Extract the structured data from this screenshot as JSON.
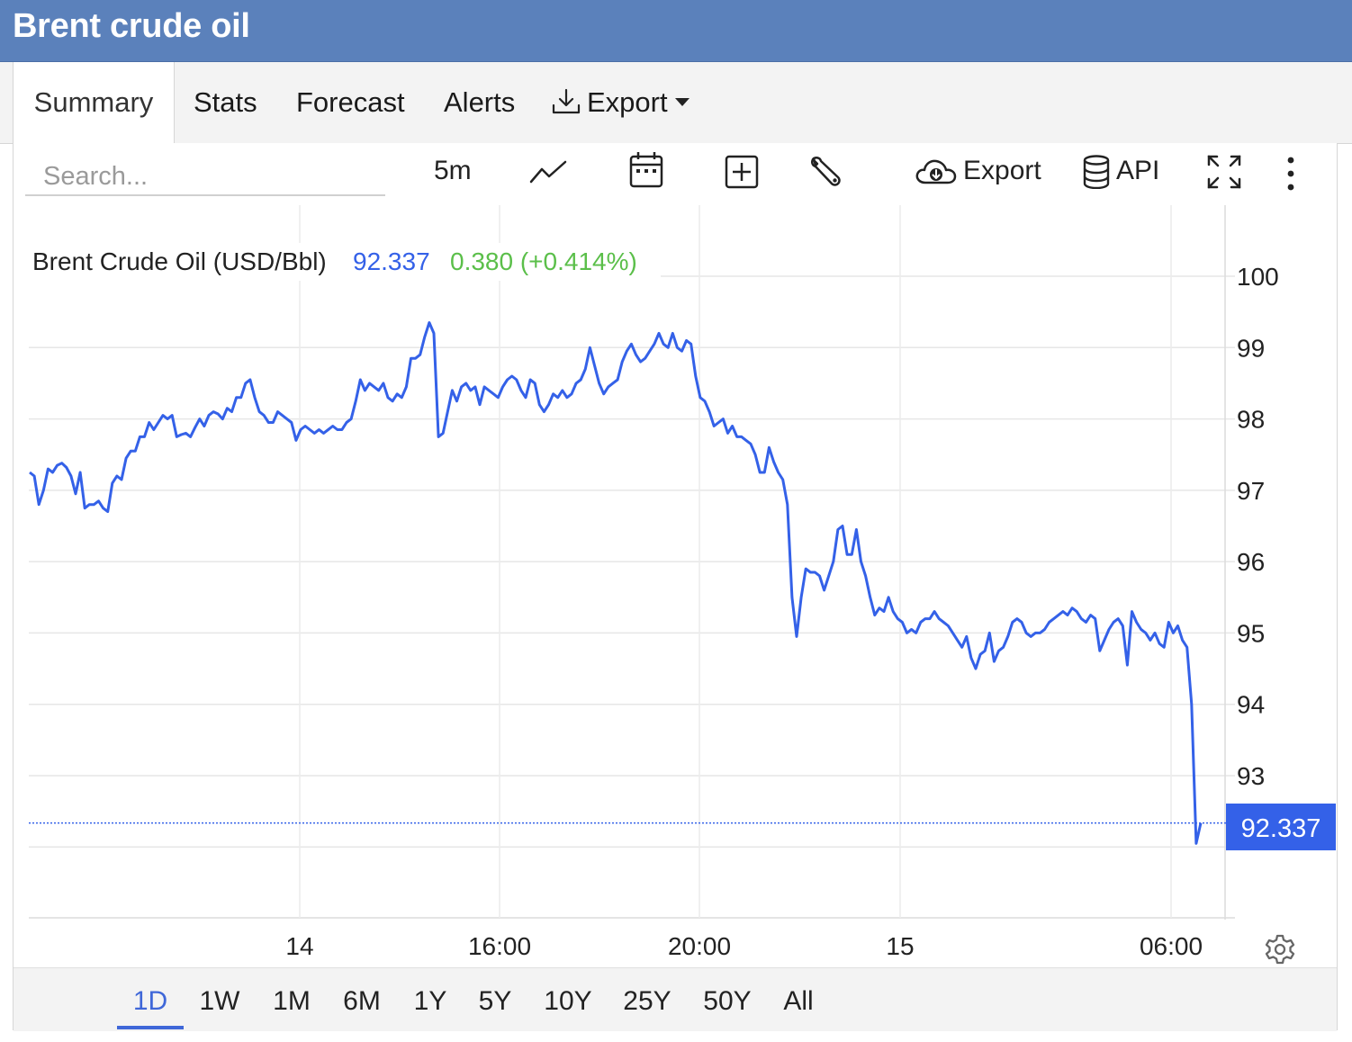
{
  "header": {
    "title": "Brent crude oil"
  },
  "tabs": [
    {
      "label": "Summary",
      "active": true
    },
    {
      "label": "Stats"
    },
    {
      "label": "Forecast"
    },
    {
      "label": "Alerts"
    },
    {
      "label": "Export",
      "icon": "download-icon",
      "dropdown": true
    }
  ],
  "toolbar": {
    "search_placeholder": "Search...",
    "interval": "5m",
    "export_label": "Export",
    "api_label": "API"
  },
  "colors": {
    "header": "#5b81bb",
    "line": "#3461e8",
    "price_text": "#3461e8",
    "change_text": "#5bbf4a",
    "badge": "#3461e8"
  },
  "chart_data": {
    "type": "line",
    "title": "Brent Crude Oil (USD/Bbl)",
    "last_price": "92.337",
    "change": "0.380",
    "change_pct": "(+0.414%)",
    "ylim": [
      91,
      101
    ],
    "yticks": [
      "93",
      "94",
      "95",
      "96",
      "97",
      "98",
      "99",
      "100"
    ],
    "xticks": [
      "14",
      "16:00",
      "20:00",
      "15",
      "06:00"
    ],
    "grid": true,
    "series": [
      {
        "values": [
          97.25,
          97.2,
          96.8,
          97.0,
          97.3,
          97.25,
          97.35,
          97.38,
          97.32,
          97.2,
          96.95,
          97.25,
          96.75,
          96.8,
          96.8,
          96.85,
          96.75,
          96.7,
          97.1,
          97.2,
          97.15,
          97.45,
          97.55,
          97.55,
          97.75,
          97.75,
          97.95,
          97.85,
          97.95,
          98.05,
          98.0,
          98.05,
          97.75,
          97.78,
          97.8,
          97.75,
          97.88,
          98.0,
          97.9,
          98.05,
          98.1,
          98.07,
          98.0,
          98.15,
          98.1,
          98.3,
          98.3,
          98.5,
          98.55,
          98.3,
          98.1,
          98.05,
          97.95,
          97.95,
          98.1,
          98.05,
          98.0,
          97.95,
          97.7,
          97.85,
          97.9,
          97.85,
          97.8,
          97.85,
          97.8,
          97.85,
          97.9,
          97.85,
          97.85,
          97.95,
          98.0,
          98.25,
          98.55,
          98.4,
          98.5,
          98.45,
          98.4,
          98.5,
          98.3,
          98.25,
          98.35,
          98.3,
          98.45,
          98.85,
          98.85,
          98.9,
          99.15,
          99.35,
          99.2,
          97.75,
          97.8,
          98.1,
          98.4,
          98.25,
          98.45,
          98.5,
          98.4,
          98.45,
          98.2,
          98.45,
          98.4,
          98.35,
          98.3,
          98.45,
          98.55,
          98.6,
          98.55,
          98.4,
          98.3,
          98.55,
          98.5,
          98.2,
          98.1,
          98.2,
          98.35,
          98.3,
          98.4,
          98.3,
          98.35,
          98.5,
          98.55,
          98.7,
          99.0,
          98.75,
          98.5,
          98.35,
          98.45,
          98.5,
          98.55,
          98.8,
          98.95,
          99.05,
          98.9,
          98.8,
          98.85,
          98.95,
          99.05,
          99.2,
          99.05,
          99.0,
          99.2,
          99.0,
          98.95,
          99.1,
          99.05,
          98.6,
          98.3,
          98.25,
          98.1,
          97.9,
          97.95,
          98.0,
          97.8,
          97.9,
          97.75,
          97.75,
          97.7,
          97.65,
          97.5,
          97.25,
          97.25,
          97.6,
          97.4,
          97.25,
          97.15,
          96.8,
          95.5,
          94.95,
          95.5,
          95.9,
          95.85,
          95.85,
          95.8,
          95.6,
          95.8,
          96.0,
          96.45,
          96.5,
          96.1,
          96.1,
          96.45,
          96.0,
          95.8,
          95.5,
          95.25,
          95.35,
          95.3,
          95.5,
          95.3,
          95.2,
          95.15,
          95.0,
          95.05,
          95.0,
          95.15,
          95.2,
          95.2,
          95.3,
          95.2,
          95.15,
          95.1,
          95.0,
          94.9,
          94.8,
          94.95,
          94.65,
          94.5,
          94.7,
          94.75,
          95.0,
          94.6,
          94.75,
          94.8,
          94.95,
          95.15,
          95.2,
          95.15,
          95.0,
          94.95,
          95.0,
          95.0,
          95.05,
          95.15,
          95.2,
          95.25,
          95.3,
          95.25,
          95.35,
          95.3,
          95.2,
          95.15,
          95.25,
          95.2,
          94.75,
          94.9,
          95.05,
          95.15,
          95.2,
          95.1,
          94.55,
          95.3,
          95.15,
          95.05,
          95.0,
          94.9,
          95.0,
          94.85,
          94.8,
          95.15,
          95.0,
          95.1,
          94.9,
          94.8,
          94.0,
          92.05,
          92.337
        ]
      }
    ]
  }
}
